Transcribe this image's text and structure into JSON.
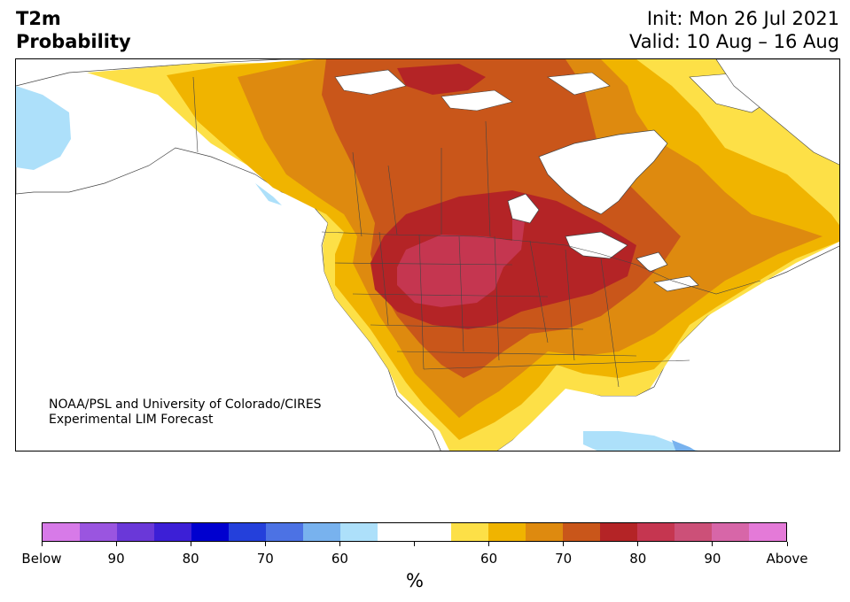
{
  "header": {
    "title_line1": "T2m",
    "title_line2": "Probability",
    "init_label": "Init: Mon 26 Jul 2021",
    "valid_label": "Valid: 10 Aug – 16 Aug"
  },
  "map": {
    "region": "North America",
    "colors": {
      "above_55": "#fde047",
      "above_60": "#f0b400",
      "above_65": "#de8a0f",
      "above_70": "#c9561a",
      "above_75": "#b42426",
      "above_80": "#c53650",
      "below_60": "#ade0fa",
      "below_65": "#78b2ee",
      "land_neutral": "#ffffff",
      "boundary": "#333333"
    },
    "credit_line1": "NOAA/PSL and University of Colorado/CIRES",
    "credit_line2": "Experimental LIM Forecast"
  },
  "colorbar": {
    "segments": [
      "#d77ae8",
      "#9a55e0",
      "#6a38d8",
      "#3c1fd6",
      "#0000cf",
      "#2440db",
      "#4c72e4",
      "#78b2ee",
      "#ade0fa",
      "#ffffff",
      "#ffffff",
      "#fde047",
      "#f0b400",
      "#de8a0f",
      "#c9561a",
      "#b42426",
      "#c53650",
      "#cc5078",
      "#d766a8",
      "#e47ad8"
    ],
    "labels": [
      "Below",
      "90",
      "80",
      "70",
      "60",
      "",
      "60",
      "70",
      "80",
      "90",
      "Above"
    ],
    "unit": "%"
  }
}
